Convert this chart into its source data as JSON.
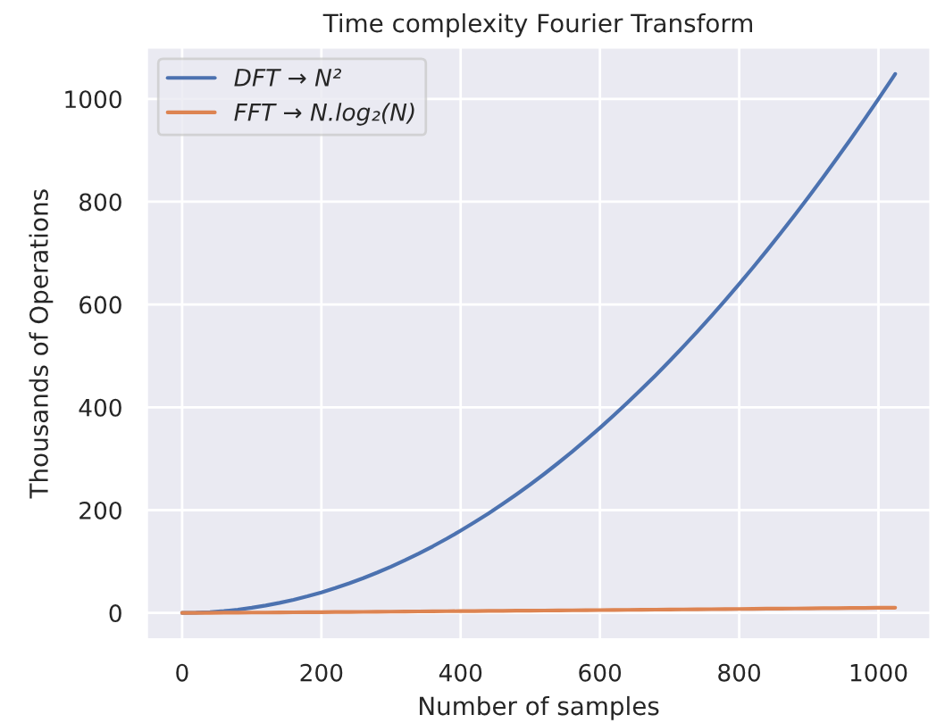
{
  "chart_data": {
    "type": "line",
    "title": "Time complexity Fourier Transform",
    "xlabel": "Number of samples",
    "ylabel": "Thousands of Operations",
    "x": [
      0,
      20,
      40,
      60,
      80,
      100,
      120,
      140,
      160,
      180,
      200,
      220,
      240,
      260,
      280,
      300,
      320,
      340,
      360,
      380,
      400,
      420,
      440,
      460,
      480,
      500,
      520,
      540,
      560,
      580,
      600,
      620,
      640,
      660,
      680,
      700,
      720,
      740,
      760,
      780,
      800,
      820,
      840,
      860,
      880,
      900,
      920,
      940,
      960,
      980,
      1000,
      1020,
      1024
    ],
    "series": [
      {
        "name": "DFT → N²",
        "color": "#4c72b0",
        "values": [
          0,
          0.4,
          1.6,
          3.6,
          6.4,
          10,
          14.4,
          19.6,
          25.6,
          32.4,
          40,
          48.4,
          57.6,
          67.6,
          78.4,
          90,
          102.4,
          115.6,
          129.6,
          144.4,
          160,
          176.4,
          193.6,
          211.6,
          230.4,
          250,
          270.4,
          291.6,
          313.6,
          336.4,
          360,
          384.4,
          409.6,
          435.6,
          462.4,
          490,
          518.4,
          547.6,
          577.6,
          608.4,
          640,
          672.4,
          705.6,
          739.6,
          774.4,
          810,
          846.4,
          883.6,
          921.6,
          960.4,
          1000,
          1040.4,
          1048.6
        ]
      },
      {
        "name": "FFT → N.log₂(N)",
        "color": "#dd8452",
        "values": [
          0,
          0.1,
          0.2,
          0.4,
          0.5,
          0.7,
          0.8,
          1.0,
          1.2,
          1.3,
          1.5,
          1.7,
          1.9,
          2.1,
          2.3,
          2.5,
          2.7,
          2.9,
          3.1,
          3.3,
          3.5,
          3.7,
          3.9,
          4.1,
          4.3,
          4.5,
          4.7,
          4.9,
          5.1,
          5.3,
          5.5,
          5.8,
          6.0,
          6.2,
          6.4,
          6.6,
          6.8,
          7.1,
          7.3,
          7.5,
          7.7,
          7.9,
          8.2,
          8.4,
          8.6,
          8.8,
          9.1,
          9.3,
          9.5,
          9.7,
          10.0,
          10.2,
          10.2
        ]
      }
    ],
    "xlim": [
      -51.2,
      1075.2
    ],
    "ylim": [
      -52.4,
      1101
    ],
    "xticks": [
      0,
      200,
      400,
      600,
      800,
      1000
    ],
    "yticks": [
      0,
      200,
      400,
      600,
      800,
      1000
    ],
    "grid": true,
    "legend": "top left",
    "line_style": "solid",
    "marker": "none"
  }
}
